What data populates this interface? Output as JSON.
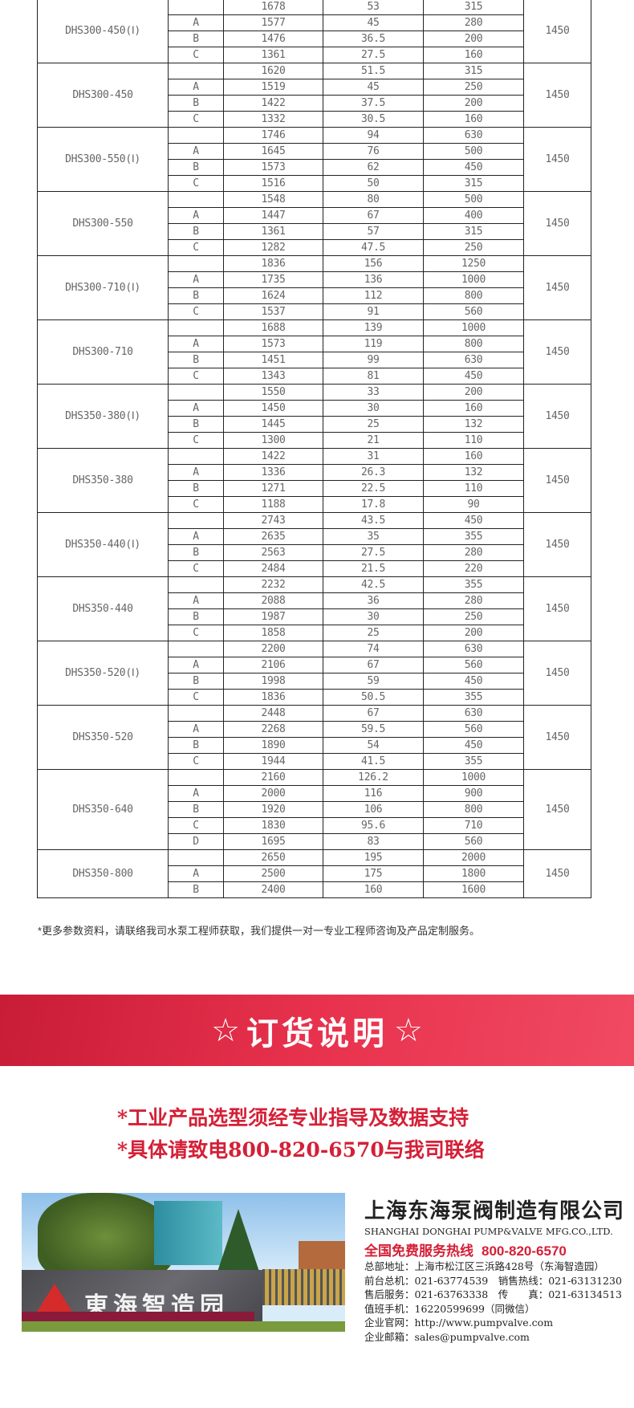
{
  "table": {
    "groups": [
      {
        "model": "DHS300-450(Ⅰ)",
        "speed": "1450",
        "rows": [
          [
            "",
            "1678",
            "53",
            "315"
          ],
          [
            "A",
            "1577",
            "45",
            "280"
          ],
          [
            "B",
            "1476",
            "36.5",
            "200"
          ],
          [
            "C",
            "1361",
            "27.5",
            "160"
          ]
        ]
      },
      {
        "model": "DHS300-450",
        "speed": "1450",
        "rows": [
          [
            "",
            "1620",
            "51.5",
            "315"
          ],
          [
            "A",
            "1519",
            "45",
            "250"
          ],
          [
            "B",
            "1422",
            "37.5",
            "200"
          ],
          [
            "C",
            "1332",
            "30.5",
            "160"
          ]
        ]
      },
      {
        "model": "DHS300-550(Ⅰ)",
        "speed": "1450",
        "rows": [
          [
            "",
            "1746",
            "94",
            "630"
          ],
          [
            "A",
            "1645",
            "76",
            "500"
          ],
          [
            "B",
            "1573",
            "62",
            "450"
          ],
          [
            "C",
            "1516",
            "50",
            "315"
          ]
        ]
      },
      {
        "model": "DHS300-550",
        "speed": "1450",
        "rows": [
          [
            "",
            "1548",
            "80",
            "500"
          ],
          [
            "A",
            "1447",
            "67",
            "400"
          ],
          [
            "B",
            "1361",
            "57",
            "315"
          ],
          [
            "C",
            "1282",
            "47.5",
            "250"
          ]
        ]
      },
      {
        "model": "DHS300-710(Ⅰ)",
        "speed": "1450",
        "rows": [
          [
            "",
            "1836",
            "156",
            "1250"
          ],
          [
            "A",
            "1735",
            "136",
            "1000"
          ],
          [
            "B",
            "1624",
            "112",
            "800"
          ],
          [
            "C",
            "1537",
            "91",
            "560"
          ]
        ]
      },
      {
        "model": "DHS300-710",
        "speed": "1450",
        "rows": [
          [
            "",
            "1688",
            "139",
            "1000"
          ],
          [
            "A",
            "1573",
            "119",
            "800"
          ],
          [
            "B",
            "1451",
            "99",
            "630"
          ],
          [
            "C",
            "1343",
            "81",
            "450"
          ]
        ]
      },
      {
        "model": "DHS350-380(Ⅰ)",
        "speed": "1450",
        "rows": [
          [
            "",
            "1550",
            "33",
            "200"
          ],
          [
            "A",
            "1450",
            "30",
            "160"
          ],
          [
            "B",
            "1445",
            "25",
            "132"
          ],
          [
            "C",
            "1300",
            "21",
            "110"
          ]
        ]
      },
      {
        "model": "DHS350-380",
        "speed": "1450",
        "rows": [
          [
            "",
            "1422",
            "31",
            "160"
          ],
          [
            "A",
            "1336",
            "26.3",
            "132"
          ],
          [
            "B",
            "1271",
            "22.5",
            "110"
          ],
          [
            "C",
            "1188",
            "17.8",
            "90"
          ]
        ]
      },
      {
        "model": "DHS350-440(Ⅰ)",
        "speed": "1450",
        "rows": [
          [
            "",
            "2743",
            "43.5",
            "450"
          ],
          [
            "A",
            "2635",
            "35",
            "355"
          ],
          [
            "B",
            "2563",
            "27.5",
            "280"
          ],
          [
            "C",
            "2484",
            "21.5",
            "220"
          ]
        ]
      },
      {
        "model": "DHS350-440",
        "speed": "1450",
        "rows": [
          [
            "",
            "2232",
            "42.5",
            "355"
          ],
          [
            "A",
            "2088",
            "36",
            "280"
          ],
          [
            "B",
            "1987",
            "30",
            "250"
          ],
          [
            "C",
            "1858",
            "25",
            "200"
          ]
        ]
      },
      {
        "model": "DHS350-520(Ⅰ)",
        "speed": "1450",
        "rows": [
          [
            "",
            "2200",
            "74",
            "630"
          ],
          [
            "A",
            "2106",
            "67",
            "560"
          ],
          [
            "B",
            "1998",
            "59",
            "450"
          ],
          [
            "C",
            "1836",
            "50.5",
            "355"
          ]
        ]
      },
      {
        "model": "DHS350-520",
        "speed": "1450",
        "rows": [
          [
            "",
            "2448",
            "67",
            "630"
          ],
          [
            "A",
            "2268",
            "59.5",
            "560"
          ],
          [
            "B",
            "1890",
            "54",
            "450"
          ],
          [
            "C",
            "1944",
            "41.5",
            "355"
          ]
        ]
      },
      {
        "model": "DHS350-640",
        "speed": "1450",
        "rows": [
          [
            "",
            "2160",
            "126.2",
            "1000"
          ],
          [
            "A",
            "2000",
            "116",
            "900"
          ],
          [
            "B",
            "1920",
            "106",
            "800"
          ],
          [
            "C",
            "1830",
            "95.6",
            "710"
          ],
          [
            "D",
            "1695",
            "83",
            "560"
          ]
        ]
      },
      {
        "model": "DHS350-800",
        "speed": "1450",
        "rows": [
          [
            "",
            "2650",
            "195",
            "2000"
          ],
          [
            "A",
            "2500",
            "175",
            "1800"
          ],
          [
            "B",
            "2400",
            "160",
            "1600"
          ]
        ]
      }
    ]
  },
  "note": "*更多参数资料，请联络我司水泵工程师获取，我们提供一对一专业工程师咨询及产品定制服务。",
  "banner": {
    "star_left": "☆",
    "title": "订货说明",
    "star_right": "☆",
    "color": "#e0304a"
  },
  "order_lines": [
    "*工业产品选型须经专业指导及数据支持",
    "*具体请致电800-820-6570与我司联络"
  ],
  "photo": {
    "sign_text": "東海智造园"
  },
  "company": {
    "name_cn": "上海东海泵阀制造有限公司",
    "name_en": "SHANGHAI DONGHAI PUMP&VALVE MFG.CO.,LTD.",
    "hotline_label": "全国免费服务热线",
    "hotline_number": "800-820-6570",
    "lines": [
      "总部地址：上海市松江区三浜路428号（东海智造园）",
      "前台总机：021-63774539　销售热线：021-63131230",
      "售后服务：021-63763338　传　　真：021-63134513",
      "值班手机：16220599699（同微信）",
      "企业官网：http://www.pumpvalve.com",
      "企业邮箱：sales@pumpvalve.com"
    ],
    "accent": "#d42037"
  }
}
